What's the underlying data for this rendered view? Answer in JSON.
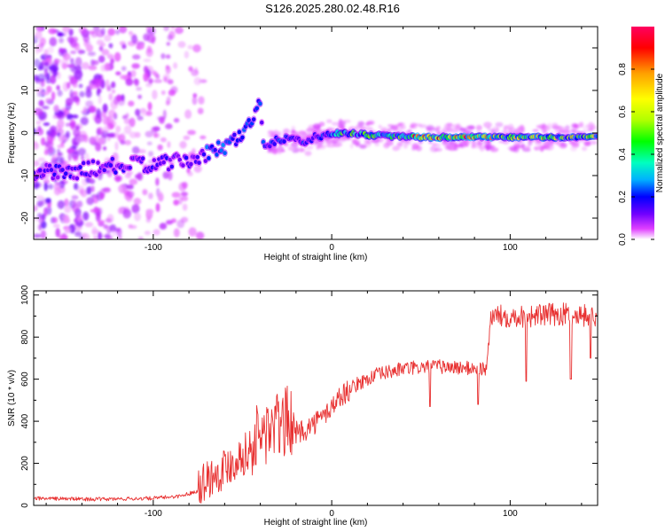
{
  "title": "S126.2025.280.02.48.R16",
  "chart_data": [
    {
      "type": "heatmap",
      "xlabel": "Height of straight line (km)",
      "ylabel": "Frequency (Hz)",
      "xlim": [
        -167,
        149
      ],
      "ylim": [
        -25,
        25
      ],
      "xticks": [
        -100,
        0,
        100
      ],
      "yticks": [
        -20,
        -10,
        0,
        10,
        20
      ],
      "colorbar": {
        "label": "Normalized spectral amplitude",
        "range": [
          0,
          1
        ],
        "ticks": [
          "0.0",
          "0.2",
          "0.4",
          "0.6",
          "0.8"
        ],
        "colormap": [
          "#ffffff",
          "#e040ff",
          "#7000ff",
          "#0000ff",
          "#00b0ff",
          "#00ffc0",
          "#00ff00",
          "#b0ff00",
          "#ffff00",
          "#ffa000",
          "#ff0000"
        ]
      },
      "ridge": [
        {
          "x": -167,
          "f": -9
        },
        {
          "x": -150,
          "f": -9.5
        },
        {
          "x": -130,
          "f": -8
        },
        {
          "x": -110,
          "f": -7.5
        },
        {
          "x": -90,
          "f": -7
        },
        {
          "x": -75,
          "f": -6
        },
        {
          "x": -65,
          "f": -4
        },
        {
          "x": -55,
          "f": -2
        },
        {
          "x": -48,
          "f": 1
        },
        {
          "x": -43,
          "f": 4
        },
        {
          "x": -40,
          "f": 7
        },
        {
          "x": -38,
          "f": -3
        },
        {
          "x": -30,
          "f": -1.5
        },
        {
          "x": -20,
          "f": -1
        },
        {
          "x": -15,
          "f": -3
        },
        {
          "x": -10,
          "f": -1
        },
        {
          "x": 0,
          "f": 0
        },
        {
          "x": 50,
          "f": -1
        },
        {
          "x": 100,
          "f": -1
        },
        {
          "x": 149,
          "f": -1
        }
      ]
    },
    {
      "type": "line",
      "xlabel": "Height of straight line (km)",
      "ylabel": "SNR (10 * v/v)",
      "xlim": [
        -167,
        149
      ],
      "ylim": [
        0,
        1020
      ],
      "xticks": [
        -100,
        0,
        100
      ],
      "yticks": [
        0,
        200,
        400,
        600,
        800,
        1000
      ],
      "color": "#e83030",
      "trend": [
        {
          "x": -167,
          "y": 25
        },
        {
          "x": -130,
          "y": 20
        },
        {
          "x": -100,
          "y": 25
        },
        {
          "x": -85,
          "y": 35
        },
        {
          "x": -75,
          "y": 60
        },
        {
          "x": -65,
          "y": 110
        },
        {
          "x": -55,
          "y": 170
        },
        {
          "x": -45,
          "y": 230
        },
        {
          "x": -35,
          "y": 290
        },
        {
          "x": -25,
          "y": 330
        },
        {
          "x": -15,
          "y": 360
        },
        {
          "x": -5,
          "y": 420
        },
        {
          "x": 5,
          "y": 520
        },
        {
          "x": 15,
          "y": 580
        },
        {
          "x": 25,
          "y": 620
        },
        {
          "x": 40,
          "y": 650
        },
        {
          "x": 60,
          "y": 660
        },
        {
          "x": 80,
          "y": 650
        },
        {
          "x": 87,
          "y": 650
        },
        {
          "x": 89,
          "y": 900
        },
        {
          "x": 110,
          "y": 900
        },
        {
          "x": 130,
          "y": 910
        },
        {
          "x": 149,
          "y": 900
        }
      ],
      "dips": [
        {
          "x": 55,
          "y": 470
        },
        {
          "x": 82,
          "y": 480
        },
        {
          "x": 109,
          "y": 590
        },
        {
          "x": 134,
          "y": 600
        },
        {
          "x": 145,
          "y": 700
        }
      ]
    }
  ]
}
